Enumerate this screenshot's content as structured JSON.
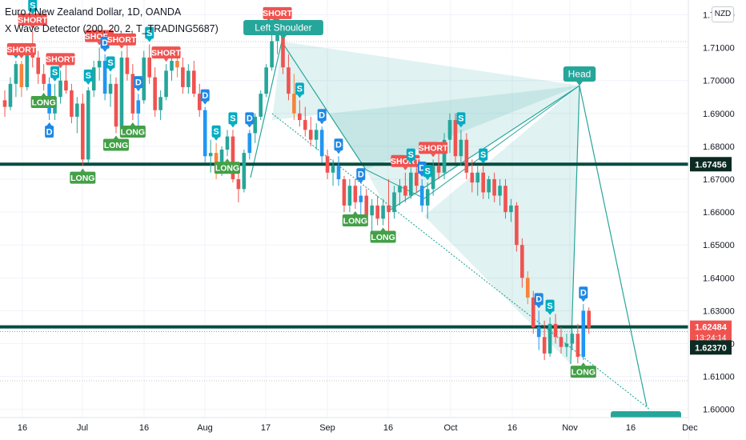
{
  "header": {
    "title": "Euro / New Zealand Dollar, 1D, OANDA",
    "indicator": "X Wave Detector (200, 20, 2, T_TRADING5687)",
    "currency": "NZD"
  },
  "colors": {
    "up": "#26a69a",
    "down": "#ef5350",
    "blue": "#2196f3",
    "orange": "#f7843a",
    "line": "#004d40",
    "pattern": "#26a69a",
    "short_bg": "#ef5350",
    "long_bg": "#43a047",
    "s_bg": "#00acc1",
    "d_bg": "#1e88e5"
  },
  "chart_data": {
    "type": "candlestick",
    "symbol": "EUR/NZD",
    "timeframe": "1D",
    "y_ticks": [
      "1.72000",
      "1.71000",
      "1.70000",
      "1.69000",
      "1.68000",
      "1.67000",
      "1.66000",
      "1.65000",
      "1.64000",
      "1.63000",
      "1.62000",
      "1.61000",
      "1.60000"
    ],
    "x_ticks": [
      "16",
      "Jul",
      "16",
      "Aug",
      "17",
      "Sep",
      "16",
      "Oct",
      "16",
      "Nov",
      "16",
      "Dec"
    ],
    "ylim": [
      1.5975,
      1.7245
    ],
    "horizontal_lines": [
      {
        "price": 1.67456,
        "label": "1.67456"
      },
      {
        "price": 1.62484,
        "label": "1.62484"
      },
      {
        "price": 1.6237,
        "label": "1.62370"
      }
    ],
    "price_tags": [
      {
        "text": "1.67456",
        "price": 1.67456,
        "style": "dark"
      },
      {
        "text": "1.62484",
        "sub": "13:24:14",
        "price": 1.62484,
        "style": "red"
      },
      {
        "text": "1.62370",
        "price": 1.6237,
        "style": "dark"
      }
    ],
    "pattern_labels": [
      "Left Shoulder",
      "Head"
    ],
    "candles": [
      [
        1.694,
        1.697,
        1.689,
        1.692
      ],
      [
        1.692,
        1.701,
        1.691,
        1.699
      ],
      [
        1.699,
        1.706,
        1.695,
        1.705
      ],
      [
        1.705,
        1.706,
        1.695,
        1.698
      ],
      [
        1.698,
        1.711,
        1.697,
        1.709
      ],
      [
        1.709,
        1.715,
        1.704,
        1.707
      ],
      [
        1.707,
        1.709,
        1.699,
        1.702
      ],
      [
        1.702,
        1.705,
        1.697,
        1.699
      ],
      [
        1.699,
        1.701,
        1.688,
        1.69
      ],
      [
        1.69,
        1.699,
        1.688,
        1.695
      ],
      [
        1.695,
        1.703,
        1.693,
        1.7
      ],
      [
        1.7,
        1.706,
        1.696,
        1.697
      ],
      [
        1.697,
        1.699,
        1.687,
        1.689
      ],
      [
        1.689,
        1.695,
        1.684,
        1.693
      ],
      [
        1.693,
        1.696,
        1.674,
        1.676
      ],
      [
        1.676,
        1.698,
        1.675,
        1.697
      ],
      [
        1.697,
        1.706,
        1.695,
        1.704
      ],
      [
        1.704,
        1.71,
        1.7,
        1.706
      ],
      [
        1.706,
        1.708,
        1.694,
        1.696
      ],
      [
        1.696,
        1.702,
        1.692,
        1.699
      ],
      [
        1.699,
        1.701,
        1.684,
        1.686
      ],
      [
        1.686,
        1.709,
        1.685,
        1.707
      ],
      [
        1.707,
        1.712,
        1.7,
        1.702
      ],
      [
        1.702,
        1.705,
        1.688,
        1.69
      ],
      [
        1.69,
        1.696,
        1.686,
        1.694
      ],
      [
        1.694,
        1.709,
        1.693,
        1.707
      ],
      [
        1.707,
        1.711,
        1.699,
        1.701
      ],
      [
        1.701,
        1.704,
        1.689,
        1.691
      ],
      [
        1.691,
        1.697,
        1.688,
        1.695
      ],
      [
        1.695,
        1.705,
        1.694,
        1.703
      ],
      [
        1.703,
        1.708,
        1.7,
        1.706
      ],
      [
        1.706,
        1.71,
        1.701,
        1.704
      ],
      [
        1.704,
        1.707,
        1.696,
        1.698
      ],
      [
        1.698,
        1.705,
        1.696,
        1.703
      ],
      [
        1.703,
        1.706,
        1.695,
        1.696
      ],
      [
        1.696,
        1.699,
        1.689,
        1.691
      ],
      [
        1.691,
        1.692,
        1.675,
        1.677
      ],
      [
        1.677,
        1.682,
        1.672,
        1.678
      ],
      [
        1.678,
        1.681,
        1.67,
        1.672
      ],
      [
        1.672,
        1.68,
        1.671,
        1.679
      ],
      [
        1.679,
        1.685,
        1.677,
        1.683
      ],
      [
        1.683,
        1.685,
        1.669,
        1.67
      ],
      [
        1.67,
        1.672,
        1.663,
        1.667
      ],
      [
        1.667,
        1.679,
        1.666,
        1.678
      ],
      [
        1.678,
        1.685,
        1.676,
        1.684
      ],
      [
        1.684,
        1.69,
        1.681,
        1.689
      ],
      [
        1.689,
        1.697,
        1.688,
        1.696
      ],
      [
        1.696,
        1.705,
        1.695,
        1.704
      ],
      [
        1.704,
        1.715,
        1.703,
        1.712
      ],
      [
        1.712,
        1.717,
        1.708,
        1.715
      ],
      [
        1.715,
        1.716,
        1.702,
        1.704
      ],
      [
        1.704,
        1.708,
        1.694,
        1.696
      ],
      [
        1.696,
        1.702,
        1.688,
        1.69
      ],
      [
        1.69,
        1.694,
        1.686,
        1.688
      ],
      [
        1.688,
        1.692,
        1.683,
        1.685
      ],
      [
        1.685,
        1.689,
        1.68,
        1.682
      ],
      [
        1.682,
        1.687,
        1.679,
        1.685
      ],
      [
        1.685,
        1.686,
        1.675,
        1.677
      ],
      [
        1.677,
        1.679,
        1.67,
        1.672
      ],
      [
        1.672,
        1.676,
        1.668,
        1.674
      ],
      [
        1.674,
        1.677,
        1.668,
        1.67
      ],
      [
        1.67,
        1.671,
        1.66,
        1.662
      ],
      [
        1.662,
        1.67,
        1.66,
        1.668
      ],
      [
        1.668,
        1.67,
        1.661,
        1.663
      ],
      [
        1.663,
        1.668,
        1.659,
        1.665
      ],
      [
        1.665,
        1.667,
        1.657,
        1.659
      ],
      [
        1.659,
        1.664,
        1.653,
        1.662
      ],
      [
        1.662,
        1.665,
        1.656,
        1.658
      ],
      [
        1.658,
        1.664,
        1.656,
        1.662
      ],
      [
        1.662,
        1.67,
        1.654,
        1.66
      ],
      [
        1.66,
        1.668,
        1.658,
        1.666
      ],
      [
        1.666,
        1.67,
        1.662,
        1.668
      ],
      [
        1.668,
        1.672,
        1.663,
        1.665
      ],
      [
        1.665,
        1.674,
        1.664,
        1.672
      ],
      [
        1.672,
        1.675,
        1.666,
        1.668
      ],
      [
        1.668,
        1.67,
        1.66,
        1.662
      ],
      [
        1.662,
        1.669,
        1.658,
        1.667
      ],
      [
        1.667,
        1.676,
        1.665,
        1.674
      ],
      [
        1.674,
        1.679,
        1.67,
        1.672
      ],
      [
        1.672,
        1.684,
        1.67,
        1.682
      ],
      [
        1.682,
        1.69,
        1.678,
        1.688
      ],
      [
        1.688,
        1.69,
        1.675,
        1.677
      ],
      [
        1.677,
        1.685,
        1.674,
        1.682
      ],
      [
        1.682,
        1.684,
        1.67,
        1.672
      ],
      [
        1.672,
        1.676,
        1.666,
        1.669
      ],
      [
        1.669,
        1.674,
        1.665,
        1.672
      ],
      [
        1.672,
        1.674,
        1.664,
        1.666
      ],
      [
        1.666,
        1.671,
        1.664,
        1.67
      ],
      [
        1.67,
        1.672,
        1.663,
        1.665
      ],
      [
        1.665,
        1.67,
        1.662,
        1.668
      ],
      [
        1.668,
        1.67,
        1.658,
        1.66
      ],
      [
        1.66,
        1.664,
        1.657,
        1.662
      ],
      [
        1.662,
        1.663,
        1.648,
        1.65
      ],
      [
        1.65,
        1.652,
        1.637,
        1.64
      ],
      [
        1.64,
        1.642,
        1.632,
        1.634
      ],
      [
        1.634,
        1.636,
        1.623,
        1.625
      ],
      [
        1.625,
        1.63,
        1.618,
        1.622
      ],
      [
        1.622,
        1.627,
        1.615,
        1.617
      ],
      [
        1.617,
        1.628,
        1.616,
        1.626
      ],
      [
        1.626,
        1.629,
        1.62,
        1.622
      ],
      [
        1.622,
        1.625,
        1.617,
        1.619
      ],
      [
        1.619,
        1.623,
        1.616,
        1.62
      ],
      [
        1.62,
        1.624,
        1.618,
        1.623
      ],
      [
        1.623,
        1.626,
        1.614,
        1.616
      ],
      [
        1.616,
        1.632,
        1.615,
        1.63
      ],
      [
        1.63,
        1.631,
        1.623,
        1.6248
      ]
    ],
    "markers": [
      {
        "i": 2,
        "kind": "S",
        "pos": "above"
      },
      {
        "i": 3,
        "kind": "SHORT",
        "pos": "above"
      },
      {
        "i": 5,
        "kind": "SHORT",
        "pos": "above"
      },
      {
        "i": 5,
        "kind": "S",
        "pos": "above"
      },
      {
        "i": 8,
        "kind": "D",
        "pos": "below"
      },
      {
        "i": 7,
        "kind": "LONG",
        "pos": "below"
      },
      {
        "i": 9,
        "kind": "S",
        "pos": "above"
      },
      {
        "i": 10,
        "kind": "SHORT",
        "pos": "above"
      },
      {
        "i": 14,
        "kind": "LONG",
        "pos": "below"
      },
      {
        "i": 15,
        "kind": "S",
        "pos": "above"
      },
      {
        "i": 17,
        "kind": "SHORT",
        "pos": "above"
      },
      {
        "i": 18,
        "kind": "D",
        "pos": "above"
      },
      {
        "i": 19,
        "kind": "S",
        "pos": "above"
      },
      {
        "i": 20,
        "kind": "LONG",
        "pos": "below"
      },
      {
        "i": 21,
        "kind": "SHORT",
        "pos": "above"
      },
      {
        "i": 23,
        "kind": "LONG",
        "pos": "below"
      },
      {
        "i": 24,
        "kind": "D",
        "pos": "above"
      },
      {
        "i": 26,
        "kind": "S",
        "pos": "above"
      },
      {
        "i": 29,
        "kind": "SHORT",
        "pos": "above"
      },
      {
        "i": 36,
        "kind": "D",
        "pos": "above"
      },
      {
        "i": 38,
        "kind": "S",
        "pos": "above"
      },
      {
        "i": 40,
        "kind": "LONG",
        "pos": "below"
      },
      {
        "i": 41,
        "kind": "S",
        "pos": "above"
      },
      {
        "i": 44,
        "kind": "D",
        "pos": "above"
      },
      {
        "i": 48,
        "kind": "S",
        "pos": "above"
      },
      {
        "i": 49,
        "kind": "SHORT",
        "pos": "above"
      },
      {
        "i": 53,
        "kind": "S",
        "pos": "above"
      },
      {
        "i": 57,
        "kind": "D",
        "pos": "above"
      },
      {
        "i": 60,
        "kind": "D",
        "pos": "above"
      },
      {
        "i": 63,
        "kind": "LONG",
        "pos": "below"
      },
      {
        "i": 64,
        "kind": "D",
        "pos": "above"
      },
      {
        "i": 68,
        "kind": "LONG",
        "pos": "below"
      },
      {
        "i": 72,
        "kind": "SHORT",
        "pos": "above"
      },
      {
        "i": 73,
        "kind": "S",
        "pos": "above"
      },
      {
        "i": 75,
        "kind": "D",
        "pos": "above"
      },
      {
        "i": 76,
        "kind": "S",
        "pos": "above"
      },
      {
        "i": 77,
        "kind": "SHORT",
        "pos": "above"
      },
      {
        "i": 82,
        "kind": "S",
        "pos": "above"
      },
      {
        "i": 86,
        "kind": "S",
        "pos": "above"
      },
      {
        "i": 96,
        "kind": "D",
        "pos": "above"
      },
      {
        "i": 98,
        "kind": "S",
        "pos": "above"
      },
      {
        "i": 104,
        "kind": "D",
        "pos": "above"
      },
      {
        "i": 104,
        "kind": "LONG",
        "pos": "below"
      }
    ],
    "pattern_shapes": {
      "left_shoulder_label": "Left Shoulder",
      "head_label": "Head"
    }
  }
}
